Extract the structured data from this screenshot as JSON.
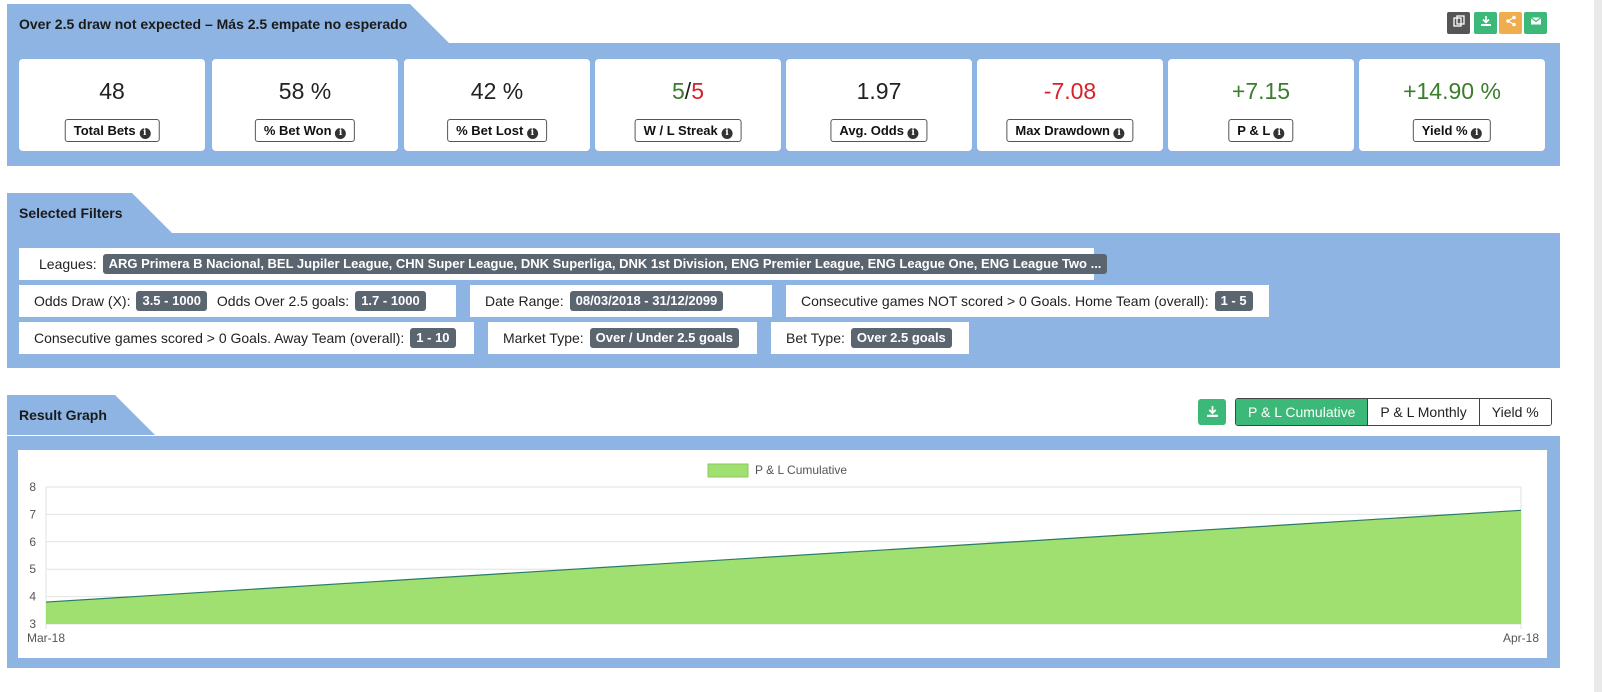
{
  "header": {
    "title": "Over 2.5 draw not expected – Más 2.5 empate no esperado",
    "tools": [
      {
        "icon": "copy-icon",
        "color": "#555555"
      },
      {
        "icon": "download-icon",
        "color": "#3cb878"
      },
      {
        "icon": "share-icon",
        "color": "#f0ad4e"
      },
      {
        "icon": "email-icon",
        "color": "#3cb878"
      }
    ]
  },
  "stats": {
    "total_bets": {
      "value": "48",
      "label": "Total Bets"
    },
    "bet_won": {
      "value": "58 %",
      "label": "% Bet Won"
    },
    "bet_lost": {
      "value": "42 %",
      "label": "% Bet Lost"
    },
    "streak": {
      "win": "5",
      "sep": "/",
      "loss": "5",
      "label": "W / L Streak"
    },
    "avg_odds": {
      "value": "1.97",
      "label": "Avg. Odds"
    },
    "max_drawdown": {
      "value": "-7.08",
      "label": "Max Drawdown"
    },
    "pl": {
      "value": "+7.15",
      "label": "P & L"
    },
    "yield": {
      "value": "+14.90 %",
      "label": "Yield %"
    }
  },
  "filters": {
    "title": "Selected Filters",
    "leagues": {
      "label": "Leagues:",
      "value": "ARG Primera B Nacional, BEL Jupiler League, CHN Super League, DNK Superliga, DNK 1st Division, ENG Premier League, ENG League One, ENG League Two ..."
    },
    "odds_draw": {
      "label": "Odds Draw (X):",
      "value": "3.5 - 1000"
    },
    "odds_over": {
      "label": "Odds Over 2.5 goals:",
      "value": "1.7 - 1000"
    },
    "date_range": {
      "label": "Date Range:",
      "value": "08/03/2018 - 31/12/2099"
    },
    "not_scored_home": {
      "label": "Consecutive games NOT scored > 0 Goals. Home Team (overall):",
      "value": "1 - 5"
    },
    "scored_away": {
      "label": "Consecutive games scored > 0 Goals. Away Team (overall):",
      "value": "1 - 10"
    },
    "market_type": {
      "label": "Market Type:",
      "value": "Over / Under 2.5 goals"
    },
    "bet_type": {
      "label": "Bet Type:",
      "value": "Over 2.5 goals"
    }
  },
  "graph": {
    "title": "Result Graph",
    "buttons": [
      "P & L Cumulative",
      "P & L Monthly",
      "Yield %"
    ],
    "active": "P & L Cumulative"
  },
  "chart_data": {
    "type": "area",
    "x": [
      "Mar-18",
      "Apr-18"
    ],
    "series": [
      {
        "name": "P & L Cumulative",
        "values": [
          3.8,
          7.15
        ],
        "color": "#a0e070",
        "line_color": "#2a7a6a"
      }
    ],
    "ylim": [
      3,
      8
    ],
    "yticks": [
      3,
      4,
      5,
      6,
      7,
      8
    ],
    "legend": "top-center",
    "grid": true
  }
}
